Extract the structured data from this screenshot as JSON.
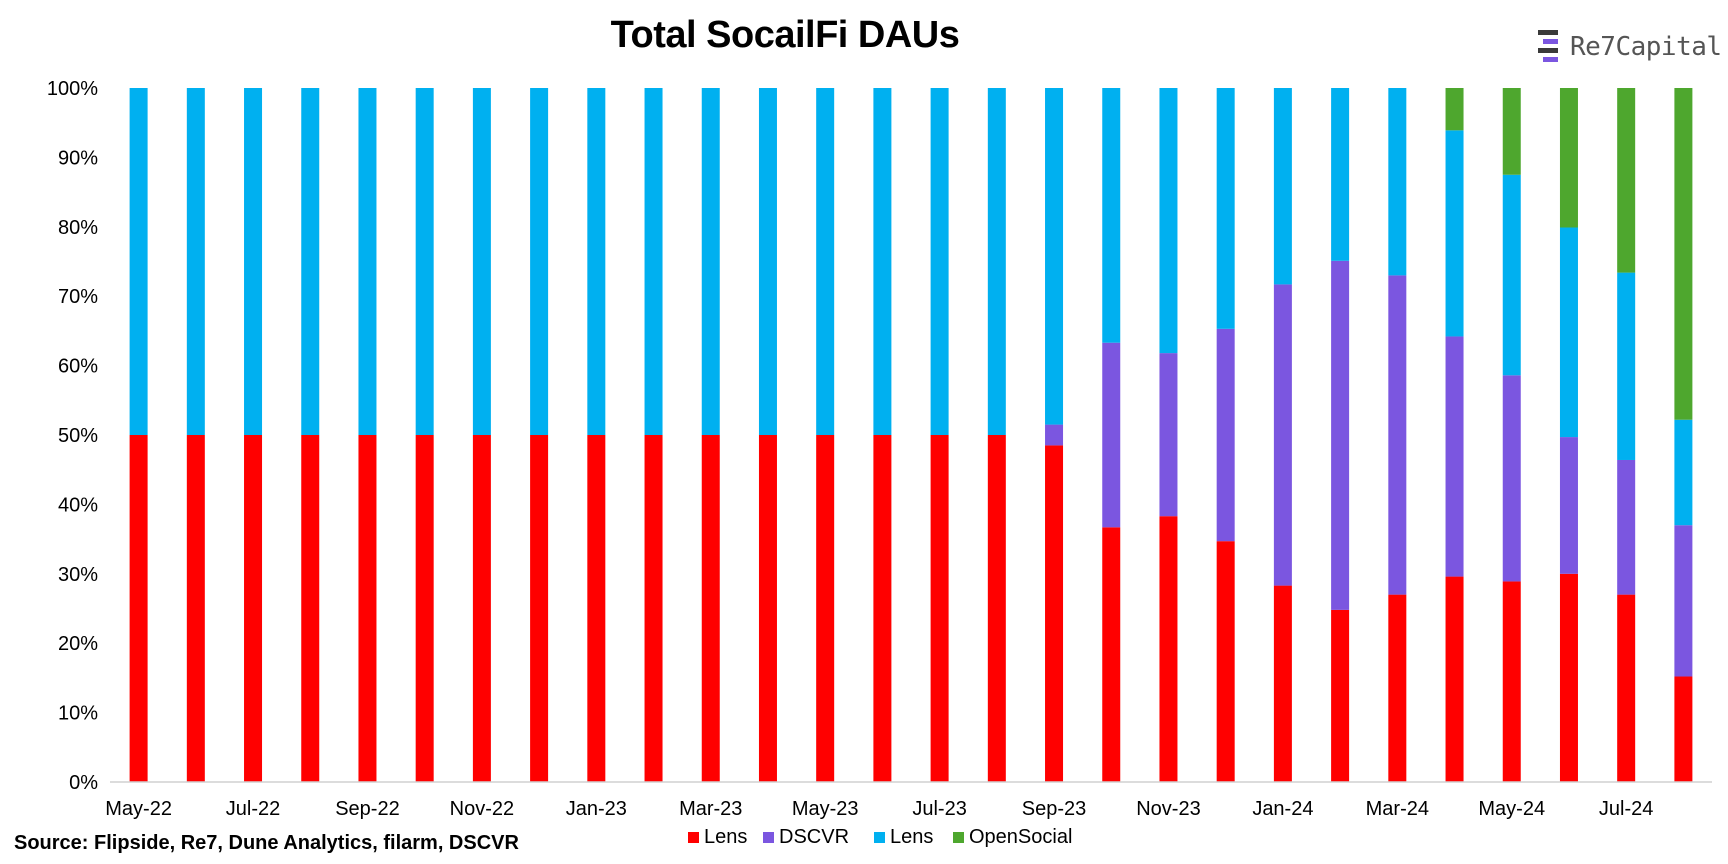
{
  "header": {
    "title": "Total SocailFi DAUs"
  },
  "brand": {
    "name": "Re7Capital"
  },
  "footer": {
    "source": "Source: Flipside, Re7, Dune Analytics, filarm, DSCVR"
  },
  "colors": {
    "Lens": "#ff0000",
    "DSCVR": "#7b56e0",
    "Lens2": "#00b0f0",
    "OpenSocial": "#4ea72e"
  },
  "chart_data": {
    "type": "bar",
    "stacked": true,
    "title": "Total SocailFi DAUs",
    "xlabel": "",
    "ylabel": "",
    "ylim": [
      0,
      100
    ],
    "yticks": [
      "0%",
      "10%",
      "20%",
      "30%",
      "40%",
      "50%",
      "60%",
      "70%",
      "80%",
      "90%",
      "100%"
    ],
    "categories": [
      "May-22",
      "Jun-22",
      "Jul-22",
      "Aug-22",
      "Sep-22",
      "Oct-22",
      "Nov-22",
      "Dec-22",
      "Jan-23",
      "Feb-23",
      "Mar-23",
      "Apr-23",
      "May-23",
      "Jun-23",
      "Jul-23",
      "Aug-23",
      "Sep-23",
      "Oct-23",
      "Nov-23",
      "Dec-23",
      "Jan-24",
      "Feb-24",
      "Mar-24",
      "Apr-24",
      "May-24",
      "Jun-24",
      "Jul-24",
      "Aug-24"
    ],
    "xtick_labels": [
      "May-22",
      "Jul-22",
      "Sep-22",
      "Nov-22",
      "Jan-23",
      "Mar-23",
      "May-23",
      "Jul-23",
      "Sep-23",
      "Nov-23",
      "Jan-24",
      "Mar-24",
      "May-24",
      "Jul-24"
    ],
    "legend_position": "bottom",
    "series": [
      {
        "name": "Lens",
        "color": "#ff0000",
        "values": [
          50,
          50,
          50,
          50,
          50,
          50,
          50,
          50,
          50,
          50,
          50,
          50,
          50,
          50,
          50,
          50,
          48.5,
          36.7,
          38.3,
          34.7,
          28.3,
          24.8,
          27.0,
          29.6,
          28.9,
          30.0,
          27.0,
          15.2
        ]
      },
      {
        "name": "DSCVR",
        "color": "#7b56e0",
        "values": [
          0,
          0,
          0,
          0,
          0,
          0,
          0,
          0,
          0,
          0,
          0,
          0,
          0,
          0,
          0,
          0,
          3.0,
          26.6,
          23.5,
          30.6,
          43.4,
          50.3,
          46.0,
          34.6,
          29.7,
          19.7,
          19.4,
          21.8
        ]
      },
      {
        "name": "Lens",
        "color": "#00b0f0",
        "values": [
          50,
          50,
          50,
          50,
          50,
          50,
          50,
          50,
          50,
          50,
          50,
          50,
          50,
          50,
          50,
          50,
          48.5,
          36.7,
          38.2,
          34.7,
          28.3,
          24.9,
          27.0,
          29.7,
          28.9,
          30.2,
          27.0,
          15.2
        ]
      },
      {
        "name": "OpenSocial",
        "color": "#4ea72e",
        "values": [
          0,
          0,
          0,
          0,
          0,
          0,
          0,
          0,
          0,
          0,
          0,
          0,
          0,
          0,
          0,
          0,
          0,
          0,
          0,
          0,
          0,
          0,
          0,
          6.1,
          12.5,
          20.1,
          26.6,
          47.8
        ]
      }
    ]
  }
}
